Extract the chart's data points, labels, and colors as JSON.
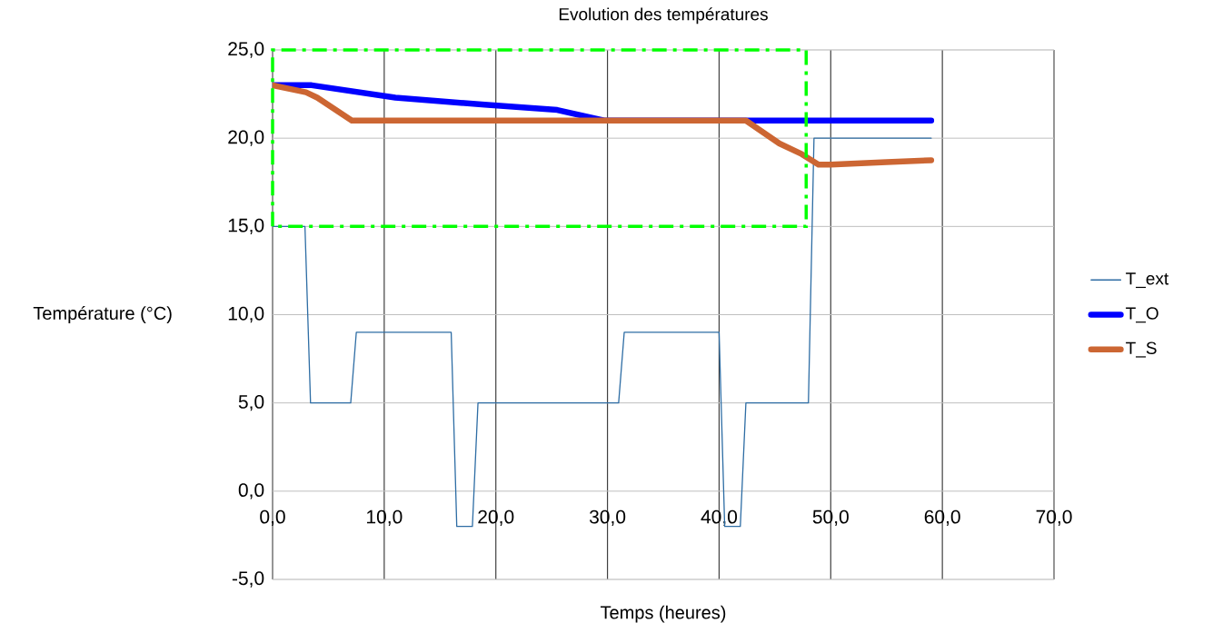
{
  "chart_data": {
    "type": "line",
    "title": "Evolution des températures",
    "xlabel": "Temps (heures)",
    "ylabel": "Température (°C)",
    "xlim": [
      0,
      70
    ],
    "ylim": [
      -5,
      25
    ],
    "xticks": [
      {
        "value": 0,
        "label": "0,0"
      },
      {
        "value": 10,
        "label": "10,0"
      },
      {
        "value": 20,
        "label": "20,0"
      },
      {
        "value": 30,
        "label": "30,0"
      },
      {
        "value": 40,
        "label": "40,0"
      },
      {
        "value": 50,
        "label": "50,0"
      },
      {
        "value": 60,
        "label": "60,0"
      },
      {
        "value": 70,
        "label": "70,0"
      }
    ],
    "yticks": [
      {
        "value": -5,
        "label": "-5,0"
      },
      {
        "value": 0,
        "label": "0,0"
      },
      {
        "value": 5,
        "label": "5,0"
      },
      {
        "value": 10,
        "label": "10,0"
      },
      {
        "value": 15,
        "label": "15,0"
      },
      {
        "value": 20,
        "label": "20,0"
      },
      {
        "value": 25,
        "label": "25,0"
      }
    ],
    "grid": true,
    "legend": "right",
    "marker": "none",
    "line_style": "solid",
    "series": [
      {
        "name": "T_ext",
        "color": "#2e6da4",
        "x": [
          0,
          2.9,
          3.4,
          7.0,
          7.5,
          16.0,
          16.5,
          17.9,
          18.4,
          31.0,
          31.5,
          40.0,
          40.5,
          41.9,
          42.4,
          48.0,
          48.5,
          59
        ],
        "values": [
          15,
          15,
          5,
          5,
          9,
          9,
          -2,
          -2,
          5,
          5,
          9,
          9,
          -2,
          -2,
          5,
          5,
          20,
          20
        ]
      },
      {
        "name": "T_O",
        "color": "#0000ff",
        "x": [
          0,
          3.5,
          11,
          19,
          25.5,
          29.7,
          59
        ],
        "values": [
          23.0,
          23.0,
          22.3,
          21.9,
          21.6,
          21.0,
          21.0
        ]
      },
      {
        "name": "T_S",
        "color": "#cc6633",
        "x": [
          0,
          3,
          4,
          7.1,
          42.4,
          45.4,
          47.4,
          48.9,
          50,
          55,
          59
        ],
        "values": [
          23.0,
          22.6,
          22.3,
          21.0,
          21.0,
          19.7,
          19.1,
          18.5,
          18.5,
          18.65,
          18.75
        ]
      }
    ]
  }
}
